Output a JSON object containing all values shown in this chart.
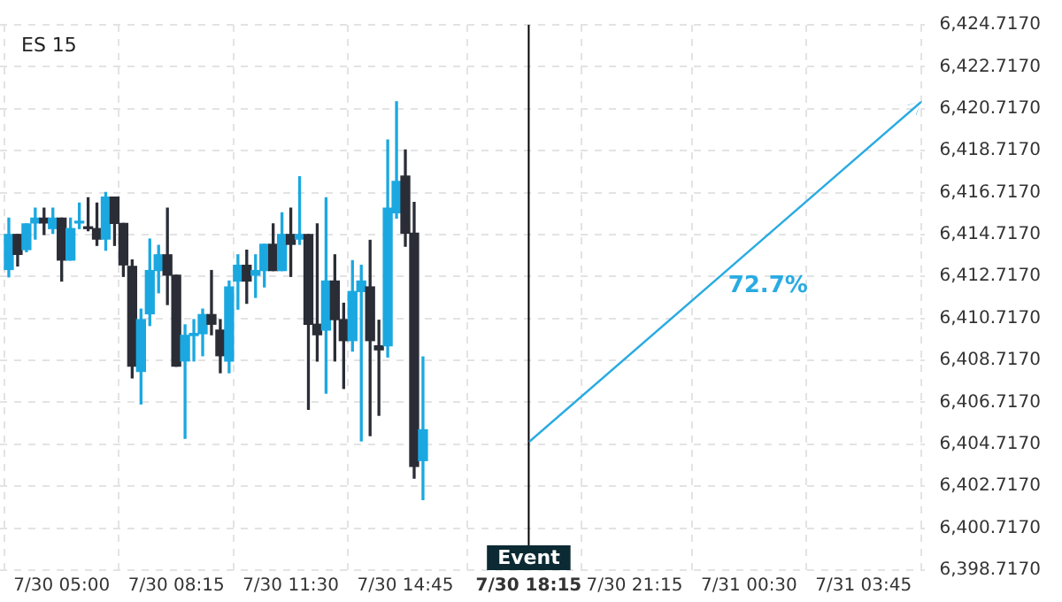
{
  "chart_data": {
    "type": "candlestick",
    "title": "ES 15",
    "x": [
      "--07-30T03:30",
      "--07-30T03:45",
      "--07-30T04:00",
      "--07-30T04:15",
      "--07-30T04:30",
      "--07-30T04:45",
      "--07-30T05:00",
      "--07-30T05:15",
      "--07-30T05:30",
      "--07-30T05:45",
      "--07-30T06:00",
      "--07-30T06:15",
      "--07-30T06:30",
      "--07-30T06:45",
      "--07-30T07:00",
      "--07-30T07:15",
      "--07-30T07:30",
      "--07-30T07:45",
      "--07-30T08:00",
      "--07-30T08:15",
      "--07-30T08:30",
      "--07-30T08:45",
      "--07-30T09:00",
      "--07-30T09:15",
      "--07-30T09:30",
      "--07-30T09:45",
      "--07-30T10:00",
      "--07-30T10:15",
      "--07-30T10:30",
      "--07-30T10:45",
      "--07-30T11:00",
      "--07-30T11:15",
      "--07-30T11:30",
      "--07-30T11:45",
      "--07-30T12:00",
      "--07-30T12:15",
      "--07-30T12:30",
      "--07-30T12:45",
      "--07-30T13:00",
      "--07-30T13:15",
      "--07-30T13:30",
      "--07-30T13:45",
      "--07-30T14:00",
      "--07-30T14:15",
      "--07-30T14:30",
      "--07-30T14:45",
      "--07-30T15:00",
      "--07-30T15:15"
    ],
    "ohlc": [
      [
        6413.05,
        6415.5,
        6412.7,
        6414.72
      ],
      [
        6414.72,
        6414.72,
        6413.22,
        6413.77
      ],
      [
        6414,
        6415.22,
        6413.9,
        6415.22
      ],
      [
        6415.27,
        6415.97,
        6414.5,
        6415.5
      ],
      [
        6415.5,
        6415.97,
        6414.72,
        6415.27
      ],
      [
        6415,
        6415.97,
        6414.77,
        6415.5
      ],
      [
        6415.5,
        6415.5,
        6412.5,
        6413.5
      ],
      [
        6413.5,
        6415.5,
        6413.5,
        6415
      ],
      [
        6415.27,
        6416.22,
        6415,
        6415.33
      ],
      [
        6415.08,
        6416.47,
        6414.9,
        6415
      ],
      [
        6415,
        6416.22,
        6414.2,
        6414.5
      ],
      [
        6414.5,
        6416.72,
        6413.97,
        6416.5
      ],
      [
        6416.5,
        6416.5,
        6414.2,
        6415.25
      ],
      [
        6415.25,
        6415.25,
        6412.72,
        6413.27
      ],
      [
        6413.2,
        6413.5,
        6407.88,
        6408.44
      ],
      [
        6408.19,
        6411.16,
        6406.64,
        6410.66
      ],
      [
        6410.94,
        6414.5,
        6410.38,
        6413
      ],
      [
        6413,
        6414.2,
        6411.94,
        6413.75
      ],
      [
        6413.75,
        6415.97,
        6411.38,
        6412.78
      ],
      [
        6412.78,
        6412.78,
        6408.44,
        6408.44
      ],
      [
        6408.69,
        6410.41,
        6405,
        6409.91
      ],
      [
        6409.9,
        6410.66,
        6408.69,
        6410
      ],
      [
        6409.99,
        6411.16,
        6408.94,
        6410.9
      ],
      [
        6410.9,
        6413,
        6409.94,
        6410.44
      ],
      [
        6410.16,
        6410.66,
        6408.13,
        6408.94
      ],
      [
        6408.69,
        6412.5,
        6408.13,
        6412.22
      ],
      [
        6412.5,
        6413.75,
        6411.16,
        6413.25
      ],
      [
        6413.25,
        6413.97,
        6411.44,
        6412.5
      ],
      [
        6412.78,
        6413.75,
        6411.72,
        6413
      ],
      [
        6413,
        6414.25,
        6412.22,
        6414.25
      ],
      [
        6414.25,
        6415.22,
        6413,
        6413
      ],
      [
        6413,
        6415.75,
        6413,
        6414.72
      ],
      [
        6414.72,
        6415.97,
        6412.72,
        6414.25
      ],
      [
        6414.5,
        6417.47,
        6414.25,
        6414.72
      ],
      [
        6414.72,
        6414.72,
        6406.38,
        6410.44
      ],
      [
        6410.44,
        6415.22,
        6408.69,
        6409.94
      ],
      [
        6410.16,
        6416.47,
        6407.16,
        6412.5
      ],
      [
        6412.5,
        6413.75,
        6408.69,
        6410.66
      ],
      [
        6410.66,
        6411.44,
        6407.38,
        6409.66
      ],
      [
        6409.66,
        6413.47,
        6409.16,
        6412
      ],
      [
        6412,
        6413.25,
        6404.88,
        6412.5
      ],
      [
        6412.22,
        6414.44,
        6405.13,
        6409.66
      ],
      [
        6409.41,
        6410.63,
        6406.1,
        6409.22
      ],
      [
        6409.41,
        6419.22,
        6408.88,
        6415.97
      ],
      [
        6415.75,
        6421.05,
        6415.5,
        6417.25
      ],
      [
        6417.5,
        6418.75,
        6414.16,
        6414.78
      ],
      [
        6414.78,
        6416.25,
        6403.1,
        6403.66
      ],
      [
        6403.94,
        6408.88,
        6402.08,
        6405.41
      ]
    ],
    "colors": [
      "#1ba8e0",
      "#2b2d36",
      "#1ba8e0",
      "#1ba8e0",
      "#2b2d36",
      "#1ba8e0",
      "#2b2d36",
      "#1ba8e0",
      "#1ba8e0",
      "#2b2d36",
      "#2b2d36",
      "#1ba8e0",
      "#2b2d36",
      "#2b2d36",
      "#2b2d36",
      "#1ba8e0",
      "#1ba8e0",
      "#1ba8e0",
      "#2b2d36",
      "#2b2d36",
      "#1ba8e0",
      "#1ba8e0",
      "#1ba8e0",
      "#2b2d36",
      "#2b2d36",
      "#1ba8e0",
      "#1ba8e0",
      "#2b2d36",
      "#1ba8e0",
      "#1ba8e0",
      "#2b2d36",
      "#1ba8e0",
      "#2b2d36",
      "#1ba8e0",
      "#2b2d36",
      "#2b2d36",
      "#1ba8e0",
      "#2b2d36",
      "#2b2d36",
      "#1ba8e0",
      "#1ba8e0",
      "#2b2d36",
      "#2b2d36",
      "#1ba8e0",
      "#1ba8e0",
      "#2b2d36",
      "#2b2d36",
      "#1ba8e0"
    ],
    "xlim": [
      "--07-30T03:15",
      "--07-31T05:30"
    ],
    "xticks": [
      {
        "value": "--07-30T05:00",
        "label": "7/30 05:00"
      },
      {
        "value": "--07-30T08:15",
        "label": "7/30 08:15"
      },
      {
        "value": "--07-30T11:30",
        "label": "7/30 11:30"
      },
      {
        "value": "--07-30T14:45",
        "label": "7/30 14:45"
      },
      {
        "value": "--07-30T18:15",
        "label": "7/30 18:15"
      },
      {
        "value": "--07-30T21:15",
        "label": "7/30 21:15"
      },
      {
        "value": "--07-31T00:30",
        "label": "7/31 00:30"
      },
      {
        "value": "--07-31T03:45",
        "label": "7/31 03:45"
      }
    ],
    "ylim": [
      6398.717,
      6424.717
    ],
    "yticks": [
      {
        "value": 6398.717,
        "label": "6,398.7170"
      },
      {
        "value": 6400.717,
        "label": "6,400.7170"
      },
      {
        "value": 6402.717,
        "label": "6,402.7170"
      },
      {
        "value": 6404.717,
        "label": "6,404.7170"
      },
      {
        "value": 6406.717,
        "label": "6,406.7170"
      },
      {
        "value": 6408.717,
        "label": "6,408.7170"
      },
      {
        "value": 6410.717,
        "label": "6,410.7170"
      },
      {
        "value": 6412.717,
        "label": "6,412.7170"
      },
      {
        "value": 6414.717,
        "label": "6,414.7170"
      },
      {
        "value": 6416.717,
        "label": "6,416.7170"
      },
      {
        "value": 6418.717,
        "label": "6,418.7170"
      },
      {
        "value": 6420.717,
        "label": "6,420.7170"
      },
      {
        "value": 6422.717,
        "label": "6,422.7170"
      },
      {
        "value": 6424.717,
        "label": "6,424.7170"
      }
    ],
    "ref_lines": [
      {
        "axis": "x",
        "value": "--07-30T18:15",
        "label": "Event",
        "color": "#000000"
      }
    ],
    "annotations": [
      "72.7%"
    ],
    "grid": true,
    "legend": false
  }
}
